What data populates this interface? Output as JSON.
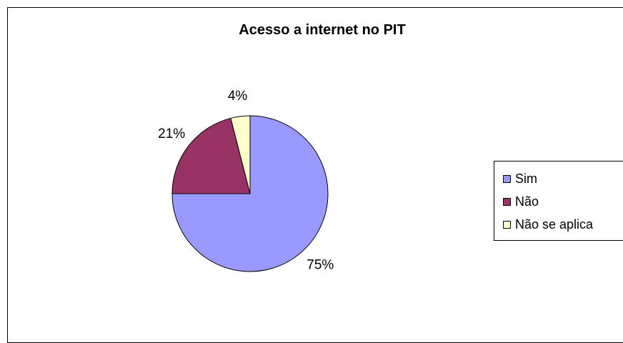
{
  "chart_data": {
    "type": "pie",
    "title": "Acesso a internet no PIT",
    "slices": [
      {
        "name": "Sim",
        "value": 75,
        "label": "75%",
        "color": "#9999FF"
      },
      {
        "name": "Não",
        "value": 21,
        "label": "21%",
        "color": "#993366"
      },
      {
        "name": "Não se aplica",
        "value": 4,
        "label": "4%",
        "color": "#FFFFCC"
      }
    ],
    "legend_position": "right"
  }
}
